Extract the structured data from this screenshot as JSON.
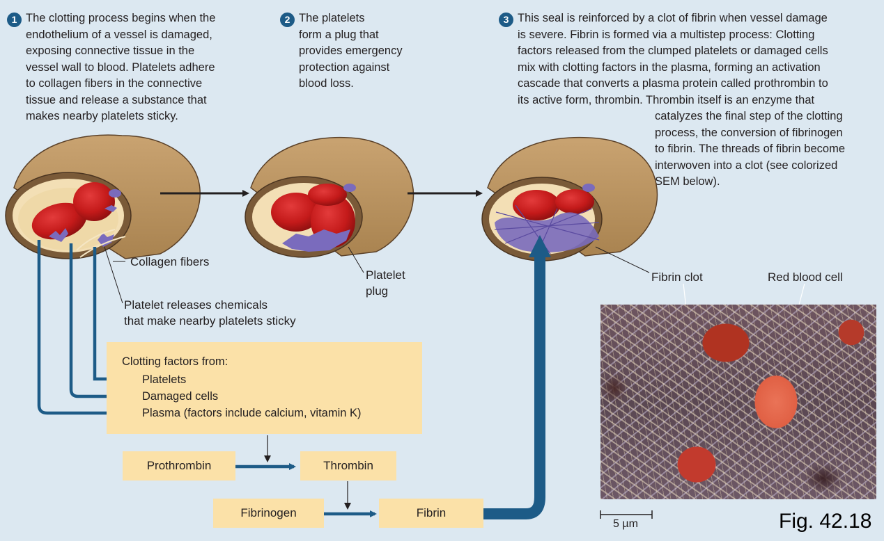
{
  "steps": [
    {
      "number": "1",
      "lines": [
        "The clotting process begins when the",
        "endothelium of a vessel is damaged,",
        "exposing connective tissue in the",
        "vessel wall to blood. Platelets adhere",
        "to collagen fibers in the connective",
        "tissue and release a substance that",
        "makes nearby platelets sticky."
      ]
    },
    {
      "number": "2",
      "lines": [
        "The platelets",
        "form a plug that",
        "provides emergency",
        "protection against",
        "blood loss."
      ]
    },
    {
      "number": "3",
      "lines": [
        "This seal is reinforced by a clot of fibrin when vessel damage",
        "is severe. Fibrin is formed via a multistep process: Clotting",
        "factors released from the clumped platelets or damaged cells",
        "mix with clotting factors in the plasma, forming an activation",
        "cascade that converts a plasma protein called prothrombin to",
        "its active form, thrombin. Thrombin itself is an enzyme that",
        "catalyzes the final step of the clotting",
        "process, the conversion of fibrinogen",
        "to fibrin. The threads of fibrin become",
        "interwoven into a clot (see colorized",
        "SEM below)."
      ]
    }
  ],
  "labels": {
    "collagen": "Collagen fibers",
    "platelet_releases": [
      "Platelet releases chemicals",
      "that make nearby platelets sticky"
    ],
    "platelet_plug": [
      "Platelet",
      "plug"
    ],
    "fibrin_clot": "Fibrin clot",
    "red_blood_cell": "Red blood cell",
    "scale": "5 µm",
    "figure": "Fig. 42.18"
  },
  "clotting_factors": {
    "title": "Clotting factors from:",
    "items": [
      "Platelets",
      "Damaged cells",
      "Plasma (factors include calcium, vitamin K)"
    ]
  },
  "cascade": {
    "prothrombin": "Prothrombin",
    "thrombin": "Thrombin",
    "fibrinogen": "Fibrinogen",
    "fibrin": "Fibrin"
  },
  "colors": {
    "background": "#dce8f1",
    "arrow_blue": "#1d5b87",
    "box_fill": "#fbe1a8",
    "vessel_wall": "#c6a06e",
    "red_cell": "#c81e1e",
    "platelet": "#7a6bbd"
  }
}
